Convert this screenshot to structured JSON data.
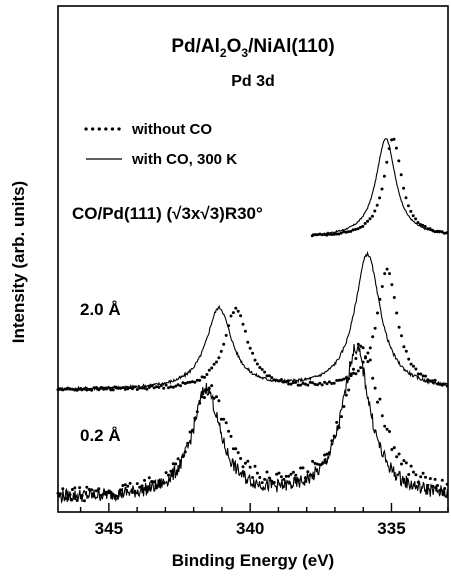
{
  "chart_data": {
    "type": "line",
    "title_prefix": "Pd/Al",
    "title_sub1": "2",
    "title_mid": "O",
    "title_sub2": "3",
    "title_suffix": "/NiAl(110)",
    "subtitle": "Pd 3d",
    "xlabel": "Binding Energy (eV)",
    "ylabel": "Intensity (arb. units)",
    "xlim": [
      346.8,
      333.0
    ],
    "x_reversed": true,
    "xticks": [
      345,
      340,
      335
    ],
    "xtick_labels": [
      "345",
      "340",
      "335"
    ],
    "legend": [
      {
        "style": "dotted",
        "label": "without CO"
      },
      {
        "style": "solid",
        "label": "with CO, 300 K"
      }
    ],
    "traces": [
      {
        "name": "CO/Pd(111) (√3x√3)R30°",
        "label": "CO/Pd(111) (√3x√3)R30°",
        "x_range": [
          337.8,
          333.0
        ],
        "baseline": 0,
        "series": [
          {
            "style": "solid",
            "peaks": [
              {
                "center": 335.2,
                "height": 0.76,
                "width": 0.42
              }
            ]
          },
          {
            "style": "dotted",
            "peaks": [
              {
                "center": 334.95,
                "height": 0.76,
                "width": 0.38
              }
            ]
          }
        ]
      },
      {
        "name": "2.0 Å",
        "label": "2.0 Å",
        "x_range": [
          346.8,
          333.0
        ],
        "baseline": 0,
        "series": [
          {
            "style": "solid",
            "peaks": [
              {
                "center": 341.1,
                "height": 0.6,
                "width": 0.55
              },
              {
                "center": 335.85,
                "height": 1.0,
                "width": 0.55
              }
            ]
          },
          {
            "style": "dotted",
            "peaks": [
              {
                "center": 340.5,
                "height": 0.6,
                "width": 0.5
              },
              {
                "center": 335.15,
                "height": 0.88,
                "width": 0.45
              }
            ]
          }
        ]
      },
      {
        "name": "0.2 Å",
        "label": "0.2 Å",
        "x_range": [
          346.8,
          333.0
        ],
        "baseline": 0,
        "series": [
          {
            "style": "solid",
            "peaks": [
              {
                "center": 341.55,
                "height": 0.8,
                "width": 0.6
              },
              {
                "center": 336.25,
                "height": 1.1,
                "width": 0.6
              }
            ]
          },
          {
            "style": "dotted",
            "peaks": [
              {
                "center": 341.45,
                "height": 0.8,
                "width": 0.75
              },
              {
                "center": 336.05,
                "height": 1.1,
                "width": 0.8
              }
            ]
          }
        ]
      }
    ]
  }
}
